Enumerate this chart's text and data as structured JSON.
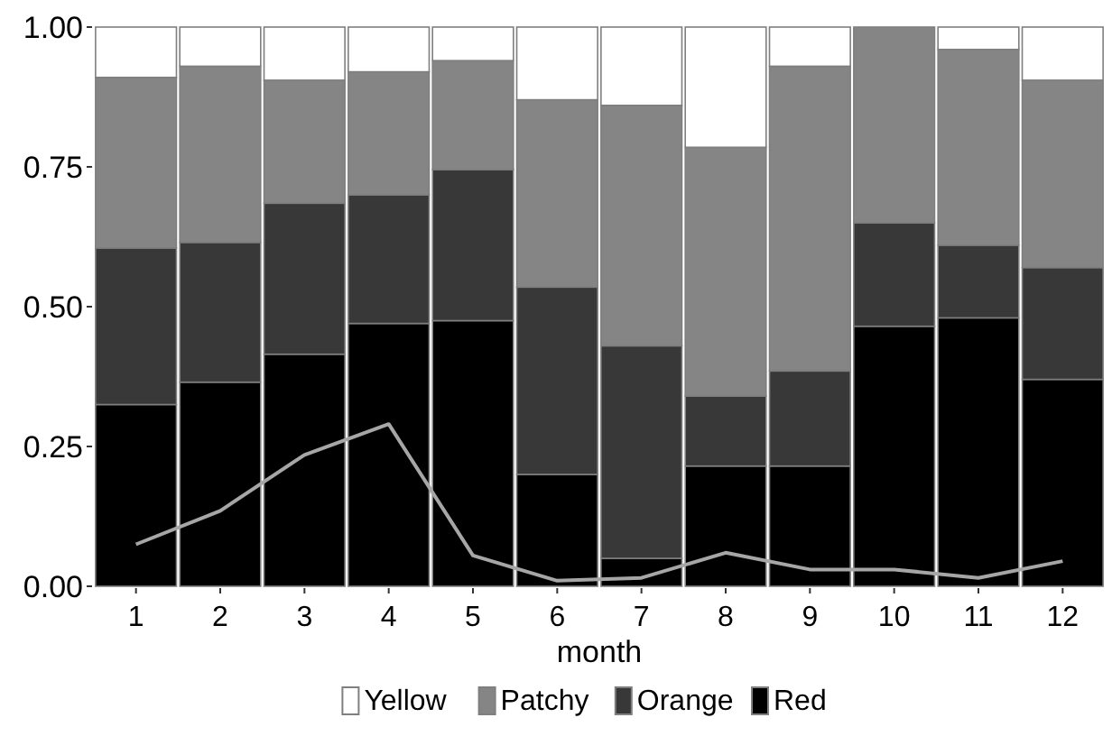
{
  "chart_data": {
    "type": "bar",
    "stacked": true,
    "xlabel": "month",
    "categories": [
      "1",
      "2",
      "3",
      "4",
      "5",
      "6",
      "7",
      "8",
      "9",
      "10",
      "11",
      "12"
    ],
    "ylim": [
      0,
      1
    ],
    "yticks": [
      {
        "value": 0,
        "label": "0.00"
      },
      {
        "value": 0.25,
        "label": "0.25"
      },
      {
        "value": 0.5,
        "label": "0.50"
      },
      {
        "value": 0.75,
        "label": "0.75"
      },
      {
        "value": 1,
        "label": "1.00"
      }
    ],
    "grid": false,
    "legend": "bottom",
    "series": [
      {
        "name": "Red",
        "color": "#000000",
        "values": [
          0.325,
          0.365,
          0.415,
          0.47,
          0.475,
          0.2,
          0.05,
          0.215,
          0.215,
          0.465,
          0.48,
          0.37
        ]
      },
      {
        "name": "Orange",
        "color": "#383838",
        "values": [
          0.28,
          0.25,
          0.27,
          0.23,
          0.27,
          0.335,
          0.38,
          0.125,
          0.17,
          0.185,
          0.13,
          0.2
        ]
      },
      {
        "name": "Patchy",
        "color": "#858585",
        "values": [
          0.305,
          0.315,
          0.22,
          0.22,
          0.195,
          0.335,
          0.43,
          0.445,
          0.545,
          0.35,
          0.35,
          0.335
        ]
      },
      {
        "name": "Yellow",
        "color": "#ffffff",
        "values": [
          0.09,
          0.07,
          0.095,
          0.08,
          0.06,
          0.13,
          0.14,
          0.215,
          0.07,
          0,
          0.04,
          0.095
        ]
      },
      {
        "type": "line",
        "color": "#a6a6a6",
        "values": [
          0.075,
          0.135,
          0.235,
          0.29,
          0.055,
          0.01,
          0.015,
          0.06,
          0.03,
          0.03,
          0.015,
          0.045
        ]
      }
    ]
  }
}
